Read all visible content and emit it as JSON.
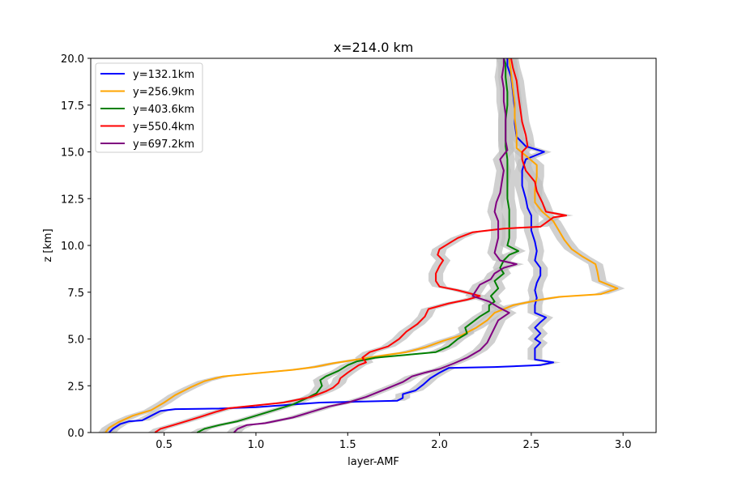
{
  "chart_data": {
    "type": "line",
    "title": "x=214.0 km",
    "xlabel": "layer-AMF",
    "ylabel": "z [km]",
    "xlim": [
      0.1,
      3.18
    ],
    "ylim": [
      0,
      20
    ],
    "xticks": [
      0.5,
      1.0,
      1.5,
      2.0,
      2.5,
      3.0
    ],
    "xtick_labels": [
      "0.5",
      "1.0",
      "1.5",
      "2.0",
      "2.5",
      "3.0"
    ],
    "yticks": [
      0,
      2.5,
      5,
      7.5,
      10,
      12.5,
      15,
      17.5,
      20
    ],
    "ytick_labels": [
      "0.0",
      "2.5",
      "5.0",
      "7.5",
      "10.0",
      "12.5",
      "15.0",
      "17.5",
      "20.0"
    ],
    "grid": false,
    "legend_position": "upper-left",
    "uncertainty_band": {
      "color": "#c0c0c0",
      "halfwidth": 0.04
    },
    "series": [
      {
        "name": "y=132.1km",
        "color": "#0000ff",
        "points": [
          [
            0.2,
            0
          ],
          [
            0.22,
            0.2
          ],
          [
            0.26,
            0.45
          ],
          [
            0.31,
            0.6
          ],
          [
            0.38,
            0.65
          ],
          [
            0.43,
            0.9
          ],
          [
            0.48,
            1.15
          ],
          [
            0.56,
            1.25
          ],
          [
            0.8,
            1.28
          ],
          [
            1.0,
            1.35
          ],
          [
            1.2,
            1.5
          ],
          [
            1.35,
            1.6
          ],
          [
            1.55,
            1.65
          ],
          [
            1.77,
            1.7
          ],
          [
            1.8,
            1.85
          ],
          [
            1.8,
            2.05
          ],
          [
            1.87,
            2.25
          ],
          [
            1.91,
            2.55
          ],
          [
            1.95,
            2.9
          ],
          [
            2.0,
            3.2
          ],
          [
            2.05,
            3.45
          ],
          [
            2.3,
            3.5
          ],
          [
            2.55,
            3.6
          ],
          [
            2.62,
            3.75
          ],
          [
            2.52,
            3.9
          ],
          [
            2.52,
            4.2
          ],
          [
            2.52,
            4.5
          ],
          [
            2.55,
            4.8
          ],
          [
            2.52,
            5.0
          ],
          [
            2.55,
            5.3
          ],
          [
            2.52,
            5.6
          ],
          [
            2.55,
            5.9
          ],
          [
            2.58,
            6.15
          ],
          [
            2.52,
            6.4
          ],
          [
            2.52,
            6.8
          ],
          [
            2.53,
            7.2
          ],
          [
            2.52,
            7.6
          ],
          [
            2.53,
            8.0
          ],
          [
            2.55,
            8.4
          ],
          [
            2.55,
            8.8
          ],
          [
            2.52,
            9.2
          ],
          [
            2.53,
            9.7
          ],
          [
            2.52,
            10.2
          ],
          [
            2.5,
            10.8
          ],
          [
            2.5,
            11.2
          ],
          [
            2.5,
            11.6
          ],
          [
            2.48,
            12.0
          ],
          [
            2.47,
            12.5
          ],
          [
            2.45,
            13.2
          ],
          [
            2.45,
            14.0
          ],
          [
            2.47,
            14.6
          ],
          [
            2.57,
            15.0
          ],
          [
            2.47,
            15.3
          ],
          [
            2.42,
            15.8
          ],
          [
            2.41,
            16.5
          ],
          [
            2.41,
            17.3
          ],
          [
            2.4,
            18.2
          ],
          [
            2.39,
            19.0
          ],
          [
            2.37,
            19.6
          ],
          [
            2.37,
            20.0
          ]
        ]
      },
      {
        "name": "y=256.9km",
        "color": "#ffa500",
        "points": [
          [
            0.18,
            0
          ],
          [
            0.2,
            0.25
          ],
          [
            0.25,
            0.55
          ],
          [
            0.33,
            0.9
          ],
          [
            0.43,
            1.2
          ],
          [
            0.5,
            1.6
          ],
          [
            0.56,
            2.0
          ],
          [
            0.64,
            2.4
          ],
          [
            0.72,
            2.75
          ],
          [
            0.82,
            3.0
          ],
          [
            0.98,
            3.15
          ],
          [
            1.2,
            3.35
          ],
          [
            1.32,
            3.5
          ],
          [
            1.42,
            3.7
          ],
          [
            1.55,
            3.9
          ],
          [
            1.68,
            4.1
          ],
          [
            1.82,
            4.3
          ],
          [
            1.92,
            4.55
          ],
          [
            2.02,
            4.9
          ],
          [
            2.12,
            5.2
          ],
          [
            2.2,
            5.6
          ],
          [
            2.26,
            6.0
          ],
          [
            2.3,
            6.4
          ],
          [
            2.4,
            6.8
          ],
          [
            2.55,
            7.1
          ],
          [
            2.65,
            7.25
          ],
          [
            2.88,
            7.4
          ],
          [
            2.97,
            7.7
          ],
          [
            2.87,
            8.1
          ],
          [
            2.86,
            8.6
          ],
          [
            2.85,
            9.0
          ],
          [
            2.78,
            9.4
          ],
          [
            2.72,
            9.8
          ],
          [
            2.68,
            10.3
          ],
          [
            2.65,
            10.8
          ],
          [
            2.62,
            11.3
          ],
          [
            2.56,
            11.8
          ],
          [
            2.52,
            12.3
          ],
          [
            2.52,
            13.0
          ],
          [
            2.53,
            13.7
          ],
          [
            2.53,
            14.3
          ],
          [
            2.47,
            14.8
          ],
          [
            2.42,
            15.2
          ],
          [
            2.42,
            16.0
          ],
          [
            2.41,
            16.8
          ],
          [
            2.41,
            17.6
          ],
          [
            2.4,
            18.4
          ],
          [
            2.39,
            19.2
          ],
          [
            2.38,
            20.0
          ]
        ]
      },
      {
        "name": "y=403.6km",
        "color": "#008000",
        "points": [
          [
            0.68,
            0
          ],
          [
            0.72,
            0.2
          ],
          [
            0.8,
            0.4
          ],
          [
            0.9,
            0.6
          ],
          [
            1.0,
            0.9
          ],
          [
            1.1,
            1.2
          ],
          [
            1.2,
            1.5
          ],
          [
            1.28,
            1.85
          ],
          [
            1.33,
            2.1
          ],
          [
            1.36,
            2.5
          ],
          [
            1.35,
            2.8
          ],
          [
            1.38,
            3.0
          ],
          [
            1.45,
            3.3
          ],
          [
            1.5,
            3.6
          ],
          [
            1.55,
            3.8
          ],
          [
            1.65,
            4.0
          ],
          [
            1.82,
            4.15
          ],
          [
            1.98,
            4.3
          ],
          [
            2.05,
            4.6
          ],
          [
            2.1,
            5.0
          ],
          [
            2.15,
            5.3
          ],
          [
            2.14,
            5.6
          ],
          [
            2.18,
            5.9
          ],
          [
            2.22,
            6.2
          ],
          [
            2.27,
            6.5
          ],
          [
            2.27,
            6.8
          ],
          [
            2.3,
            7.0
          ],
          [
            2.28,
            7.3
          ],
          [
            2.32,
            7.7
          ],
          [
            2.3,
            8.1
          ],
          [
            2.35,
            8.5
          ],
          [
            2.33,
            8.8
          ],
          [
            2.35,
            9.2
          ],
          [
            2.38,
            9.5
          ],
          [
            2.43,
            9.7
          ],
          [
            2.37,
            10.0
          ],
          [
            2.38,
            10.4
          ],
          [
            2.38,
            10.8
          ],
          [
            2.38,
            11.3
          ],
          [
            2.38,
            11.9
          ],
          [
            2.37,
            12.5
          ],
          [
            2.37,
            13.3
          ],
          [
            2.37,
            14.0
          ],
          [
            2.37,
            14.6
          ],
          [
            2.36,
            15.3
          ],
          [
            2.36,
            16.0
          ],
          [
            2.36,
            16.7
          ],
          [
            2.37,
            17.5
          ],
          [
            2.37,
            18.2
          ],
          [
            2.36,
            19.0
          ],
          [
            2.36,
            19.7
          ],
          [
            2.35,
            20.0
          ]
        ]
      },
      {
        "name": "y=550.4km",
        "color": "#ff0000",
        "points": [
          [
            0.45,
            0
          ],
          [
            0.48,
            0.2
          ],
          [
            0.55,
            0.4
          ],
          [
            0.62,
            0.6
          ],
          [
            0.7,
            0.85
          ],
          [
            0.78,
            1.1
          ],
          [
            0.85,
            1.3
          ],
          [
            1.0,
            1.45
          ],
          [
            1.15,
            1.6
          ],
          [
            1.3,
            1.9
          ],
          [
            1.38,
            2.2
          ],
          [
            1.42,
            2.4
          ],
          [
            1.45,
            2.65
          ],
          [
            1.46,
            2.9
          ],
          [
            1.5,
            3.2
          ],
          [
            1.56,
            3.6
          ],
          [
            1.6,
            3.75
          ],
          [
            1.58,
            4.0
          ],
          [
            1.62,
            4.3
          ],
          [
            1.72,
            4.6
          ],
          [
            1.78,
            5.0
          ],
          [
            1.82,
            5.4
          ],
          [
            1.88,
            5.8
          ],
          [
            1.92,
            6.2
          ],
          [
            1.94,
            6.6
          ],
          [
            2.05,
            6.9
          ],
          [
            2.15,
            7.1
          ],
          [
            2.22,
            7.3
          ],
          [
            2.1,
            7.6
          ],
          [
            2.0,
            7.8
          ],
          [
            1.98,
            8.1
          ],
          [
            1.98,
            8.5
          ],
          [
            2.0,
            8.9
          ],
          [
            2.02,
            9.2
          ],
          [
            1.99,
            9.5
          ],
          [
            2.0,
            9.8
          ],
          [
            2.05,
            10.1
          ],
          [
            2.1,
            10.4
          ],
          [
            2.18,
            10.7
          ],
          [
            2.35,
            10.9
          ],
          [
            2.55,
            11.0
          ],
          [
            2.62,
            11.5
          ],
          [
            2.69,
            11.6
          ],
          [
            2.58,
            11.8
          ],
          [
            2.56,
            12.3
          ],
          [
            2.53,
            12.9
          ],
          [
            2.52,
            13.4
          ],
          [
            2.47,
            14.0
          ],
          [
            2.45,
            14.6
          ],
          [
            2.45,
            15.0
          ],
          [
            2.48,
            15.3
          ],
          [
            2.47,
            15.9
          ],
          [
            2.45,
            16.6
          ],
          [
            2.44,
            17.3
          ],
          [
            2.43,
            18.0
          ],
          [
            2.42,
            18.8
          ],
          [
            2.4,
            19.5
          ],
          [
            2.39,
            20.0
          ]
        ]
      },
      {
        "name": "y=697.2km",
        "color": "#800080",
        "points": [
          [
            0.88,
            0
          ],
          [
            0.9,
            0.2
          ],
          [
            0.95,
            0.4
          ],
          [
            1.05,
            0.5
          ],
          [
            1.1,
            0.6
          ],
          [
            1.2,
            0.8
          ],
          [
            1.3,
            1.1
          ],
          [
            1.4,
            1.4
          ],
          [
            1.5,
            1.6
          ],
          [
            1.6,
            1.9
          ],
          [
            1.7,
            2.3
          ],
          [
            1.8,
            2.7
          ],
          [
            1.85,
            3.0
          ],
          [
            1.92,
            3.2
          ],
          [
            2.0,
            3.4
          ],
          [
            2.08,
            3.7
          ],
          [
            2.15,
            4.0
          ],
          [
            2.22,
            4.4
          ],
          [
            2.26,
            4.8
          ],
          [
            2.28,
            5.2
          ],
          [
            2.3,
            5.6
          ],
          [
            2.32,
            6.0
          ],
          [
            2.38,
            6.4
          ],
          [
            2.32,
            6.7
          ],
          [
            2.27,
            7.0
          ],
          [
            2.18,
            7.3
          ],
          [
            2.2,
            7.6
          ],
          [
            2.22,
            7.9
          ],
          [
            2.28,
            8.2
          ],
          [
            2.3,
            8.5
          ],
          [
            2.35,
            8.8
          ],
          [
            2.42,
            9.0
          ],
          [
            2.33,
            9.2
          ],
          [
            2.3,
            9.6
          ],
          [
            2.31,
            10.0
          ],
          [
            2.32,
            10.4
          ],
          [
            2.32,
            10.8
          ],
          [
            2.32,
            11.3
          ],
          [
            2.3,
            11.8
          ],
          [
            2.31,
            12.3
          ],
          [
            2.33,
            12.8
          ],
          [
            2.34,
            13.4
          ],
          [
            2.35,
            14.0
          ],
          [
            2.33,
            14.6
          ],
          [
            2.37,
            15.1
          ],
          [
            2.36,
            15.6
          ],
          [
            2.36,
            16.3
          ],
          [
            2.36,
            17.0
          ],
          [
            2.35,
            17.7
          ],
          [
            2.35,
            18.4
          ],
          [
            2.34,
            19.0
          ],
          [
            2.35,
            19.6
          ],
          [
            2.35,
            20.0
          ]
        ]
      }
    ]
  }
}
